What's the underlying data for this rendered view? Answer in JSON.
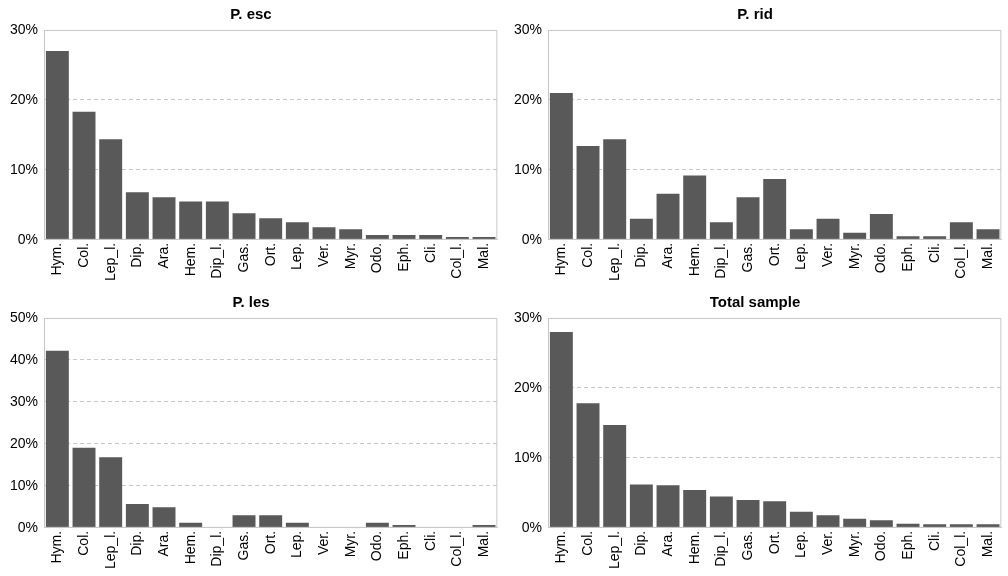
{
  "chart_data": [
    {
      "type": "bar",
      "title": "P. esc",
      "categories": [
        "Hym.",
        "Col.",
        "Lep_l.",
        "Dip.",
        "Ara.",
        "Hem.",
        "Dip_l.",
        "Gas.",
        "Ort.",
        "Lep.",
        "Ver.",
        "Myr.",
        "Odo.",
        "Eph.",
        "Cli.",
        "Col_l.",
        "Mal."
      ],
      "values": [
        27.0,
        18.3,
        14.4,
        6.8,
        6.1,
        5.5,
        5.5,
        3.8,
        3.1,
        2.5,
        1.8,
        1.5,
        0.7,
        0.7,
        0.7,
        0.4,
        0.4
      ],
      "color": "#595959",
      "ylim": [
        0,
        30
      ],
      "yticks": [
        {
          "value": 0,
          "label": "0%"
        },
        {
          "value": 10,
          "label": "10%"
        },
        {
          "value": 20,
          "label": "20%"
        },
        {
          "value": 30,
          "label": "30%"
        }
      ],
      "grid": "y"
    },
    {
      "type": "bar",
      "title": "P. rid",
      "categories": [
        "Hym.",
        "Col.",
        "Lep_l.",
        "Dip.",
        "Ara.",
        "Hem.",
        "Dip_l.",
        "Gas.",
        "Ort.",
        "Lep.",
        "Ver.",
        "Myr.",
        "Odo.",
        "Eph.",
        "Cli.",
        "Col_l.",
        "Mal."
      ],
      "values": [
        21.0,
        13.4,
        14.4,
        3.0,
        6.6,
        9.2,
        2.5,
        6.1,
        8.7,
        1.5,
        3.0,
        1.0,
        3.7,
        0.5,
        0.5,
        2.5,
        1.5
      ],
      "color": "#595959",
      "ylim": [
        0,
        30
      ],
      "yticks": [
        {
          "value": 0,
          "label": "0%"
        },
        {
          "value": 10,
          "label": "10%"
        },
        {
          "value": 20,
          "label": "20%"
        },
        {
          "value": 30,
          "label": "30%"
        }
      ],
      "grid": "y"
    },
    {
      "type": "bar",
      "title": "P. les",
      "categories": [
        "Hym.",
        "Col.",
        "Lep_l.",
        "Dip.",
        "Ara.",
        "Hem.",
        "Dip_l.",
        "Gas.",
        "Ort.",
        "Lep.",
        "Ver.",
        "Myr.",
        "Odo.",
        "Eph.",
        "Cli.",
        "Col_l.",
        "Mal."
      ],
      "values": [
        42.2,
        19.1,
        16.8,
        5.7,
        4.9,
        1.2,
        0,
        3.0,
        3.0,
        1.2,
        0,
        0,
        1.2,
        0.7,
        0,
        0,
        0.7
      ],
      "color": "#595959",
      "ylim": [
        0,
        50
      ],
      "yticks": [
        {
          "value": 0,
          "label": "0%"
        },
        {
          "value": 10,
          "label": "10%"
        },
        {
          "value": 20,
          "label": "20%"
        },
        {
          "value": 30,
          "label": "30%"
        },
        {
          "value": 40,
          "label": "40%"
        },
        {
          "value": 50,
          "label": "50%"
        }
      ],
      "grid": "y"
    },
    {
      "type": "bar",
      "title": "Total sample",
      "categories": [
        "Hym.",
        "Col.",
        "Lep_l.",
        "Dip.",
        "Ara.",
        "Hem.",
        "Dip_l.",
        "Gas.",
        "Ort.",
        "Lep.",
        "Ver.",
        "Myr.",
        "Odo.",
        "Eph.",
        "Cli.",
        "Col_l.",
        "Mal."
      ],
      "values": [
        28.0,
        17.8,
        14.7,
        6.2,
        6.1,
        5.4,
        4.5,
        4.0,
        3.8,
        2.3,
        1.8,
        1.3,
        1.1,
        0.6,
        0.5,
        0.5,
        0.5
      ],
      "color": "#595959",
      "ylim": [
        0,
        30
      ],
      "yticks": [
        {
          "value": 0,
          "label": "0%"
        },
        {
          "value": 10,
          "label": "10%"
        },
        {
          "value": 20,
          "label": "20%"
        },
        {
          "value": 30,
          "label": "30%"
        }
      ],
      "grid": "y"
    }
  ]
}
